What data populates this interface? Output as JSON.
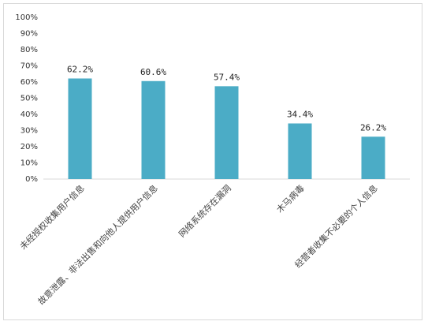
{
  "chart_data": {
    "type": "bar",
    "categories": [
      "未经授权收集用户信息",
      "故意泄露、非法出售和向他人提供用户信息",
      "网络系统存在漏洞",
      "木马病毒",
      "经营者收集不必要的个人信息"
    ],
    "values": [
      62.2,
      60.6,
      57.4,
      34.4,
      26.2
    ],
    "value_labels": [
      "62.2%",
      "60.6%",
      "57.4%",
      "34.4%",
      "26.2%"
    ],
    "color": "#4bacc6",
    "ylim": [
      0,
      100
    ],
    "yticks": [
      {
        "value": 0,
        "label": "0%"
      },
      {
        "value": 10,
        "label": "10%"
      },
      {
        "value": 20,
        "label": "20%"
      },
      {
        "value": 30,
        "label": "30%"
      },
      {
        "value": 40,
        "label": "40%"
      },
      {
        "value": 50,
        "label": "50%"
      },
      {
        "value": 60,
        "label": "60%"
      },
      {
        "value": 70,
        "label": "70%"
      },
      {
        "value": 80,
        "label": "80%"
      },
      {
        "value": 90,
        "label": "90%"
      },
      {
        "value": 100,
        "label": "100%"
      }
    ],
    "grid": false
  }
}
